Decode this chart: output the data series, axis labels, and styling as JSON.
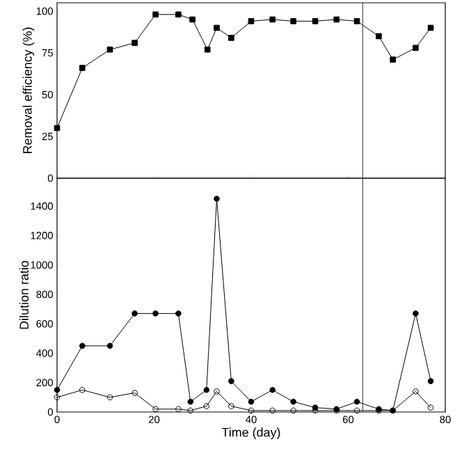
{
  "chart_data": [
    {
      "type": "line",
      "ylabel": "Removal efficiency (%)",
      "xlim": [
        0,
        80
      ],
      "xticks": [
        0,
        20,
        40,
        60,
        80
      ],
      "ylim": [
        0,
        105
      ],
      "yticks": [
        0,
        25,
        50,
        75,
        100
      ],
      "tick_labels": "y",
      "grid": false,
      "line_style": "solid",
      "ref_lines": [
        {
          "axis": "x",
          "value": 63
        }
      ],
      "series": [
        {
          "color": "#000000",
          "marker": "square",
          "x": [
            0,
            5.2,
            10.9,
            16,
            20.3,
            25,
            27.9,
            31,
            32.9,
            35.9,
            40,
            44.4,
            48.7,
            53.2,
            57.6,
            61.8,
            66.3,
            69.2,
            73.9,
            77
          ],
          "values": [
            30,
            66,
            77,
            81,
            98,
            98,
            95,
            77,
            90,
            84,
            94,
            95,
            94,
            94,
            95,
            94,
            85,
            71,
            78,
            90
          ]
        }
      ]
    },
    {
      "type": "line",
      "xlabel": "Time (day)",
      "ylabel": "Dilution ratio",
      "xlim": [
        0,
        80
      ],
      "xticks": [
        0,
        20,
        40,
        60,
        80
      ],
      "ylim": [
        0,
        1590
      ],
      "yticks": [
        0,
        200,
        400,
        600,
        800,
        1000,
        1200,
        1400
      ],
      "grid": false,
      "line_style": "solid",
      "ref_lines": [
        {
          "axis": "x",
          "value": 63
        }
      ],
      "series": [
        {
          "color": "#000000",
          "marker": "circle",
          "x": [
            0,
            5.2,
            10.9,
            16,
            20.3,
            25,
            27.5,
            30.8,
            32.9,
            35.9,
            40,
            44.4,
            48.7,
            53.2,
            57.6,
            61.8,
            66.3,
            69.2,
            73.9,
            77
          ],
          "values": [
            150,
            450,
            450,
            670,
            670,
            670,
            70,
            150,
            1450,
            210,
            70,
            150,
            70,
            30,
            20,
            70,
            20,
            10,
            670,
            210
          ]
        },
        {
          "color": "#000000",
          "marker": "open circle",
          "x": [
            0,
            5.2,
            10.9,
            16,
            20.3,
            25,
            27.5,
            30.8,
            32.9,
            35.9,
            40,
            44.4,
            48.7,
            53.2,
            57.6,
            61.8,
            66.3,
            69.2,
            73.9,
            77
          ],
          "values": [
            100,
            150,
            100,
            130,
            20,
            20,
            10,
            40,
            140,
            40,
            10,
            10,
            10,
            10,
            10,
            10,
            10,
            10,
            140,
            30
          ]
        }
      ]
    }
  ]
}
